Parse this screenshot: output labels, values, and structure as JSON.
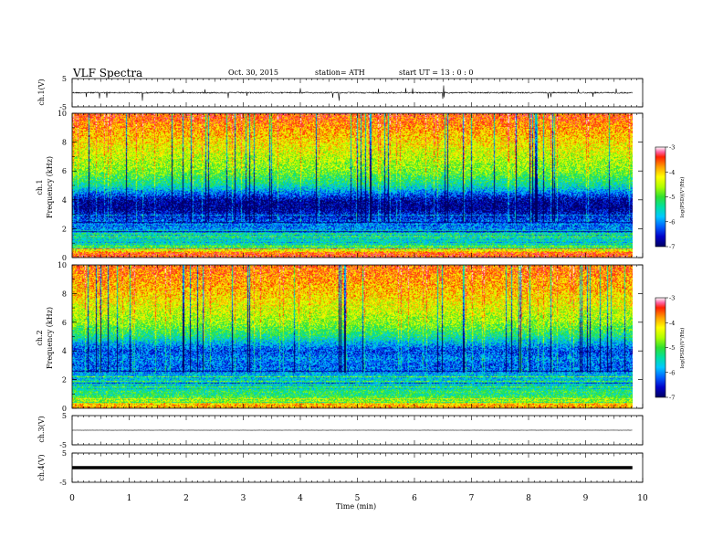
{
  "header": {
    "title": "VLF  Spectra",
    "date": "Oct. 30, 2015",
    "station": "station= ATH",
    "start": "start  UT  =   13 : 0  : 0"
  },
  "chart_data": [
    {
      "type": "line",
      "panel": "ch1-waveform",
      "ylabel": "ch.1(V)",
      "ylim": [
        -5,
        5
      ],
      "yticks": [
        "5",
        "-5"
      ],
      "xlim": [
        0,
        10
      ],
      "x_end": 9.82,
      "baseline": 0.0,
      "color": "#000000"
    },
    {
      "type": "heatmap",
      "panel": "ch1-spectrogram",
      "ylabel": "Frequency (kHz)",
      "channel_label": "ch.1",
      "ylim": [
        0,
        10
      ],
      "yticks": [
        "0",
        "2",
        "4",
        "6",
        "8",
        "10"
      ],
      "xlim": [
        0,
        10
      ],
      "x_end": 9.82,
      "profile": [
        {
          "f": 0.3,
          "v": -3.8
        },
        {
          "f": 0.6,
          "v": -4.8
        },
        {
          "f": 1.0,
          "v": -5.5
        },
        {
          "f": 1.5,
          "v": -5.9
        },
        {
          "f": 2.0,
          "v": -6.1
        },
        {
          "f": 2.5,
          "v": -6.3
        },
        {
          "f": 3.0,
          "v": -6.6
        },
        {
          "f": 3.5,
          "v": -6.9
        },
        {
          "f": 4.0,
          "v": -6.8
        },
        {
          "f": 4.5,
          "v": -6.2
        },
        {
          "f": 5.0,
          "v": -5.6
        },
        {
          "f": 5.5,
          "v": -5.3
        },
        {
          "f": 6.0,
          "v": -5.0
        },
        {
          "f": 7.0,
          "v": -4.7
        },
        {
          "f": 8.0,
          "v": -4.4
        },
        {
          "f": 9.0,
          "v": -4.1
        },
        {
          "f": 10.0,
          "v": -3.8
        }
      ]
    },
    {
      "type": "heatmap",
      "panel": "ch2-spectrogram",
      "ylabel": "Frequency (kHz)",
      "channel_label": "ch.2",
      "ylim": [
        0,
        10
      ],
      "yticks": [
        "0",
        "2",
        "4",
        "6",
        "8",
        "10"
      ],
      "xlim": [
        0,
        10
      ],
      "x_end": 9.82,
      "profile": [
        {
          "f": 0.3,
          "v": -4.2
        },
        {
          "f": 0.6,
          "v": -5.0
        },
        {
          "f": 1.0,
          "v": -5.4
        },
        {
          "f": 1.5,
          "v": -5.5
        },
        {
          "f": 2.0,
          "v": -5.8
        },
        {
          "f": 2.5,
          "v": -6.0
        },
        {
          "f": 3.0,
          "v": -6.3
        },
        {
          "f": 3.5,
          "v": -6.1
        },
        {
          "f": 4.0,
          "v": -6.4
        },
        {
          "f": 4.5,
          "v": -6.0
        },
        {
          "f": 5.0,
          "v": -5.5
        },
        {
          "f": 5.5,
          "v": -5.2
        },
        {
          "f": 6.0,
          "v": -4.9
        },
        {
          "f": 7.0,
          "v": -4.6
        },
        {
          "f": 8.0,
          "v": -4.3
        },
        {
          "f": 9.0,
          "v": -4.1
        },
        {
          "f": 10.0,
          "v": -3.9
        }
      ]
    },
    {
      "type": "line",
      "panel": "ch3-waveform",
      "ylabel": "ch.3(V)",
      "ylim": [
        -5,
        5
      ],
      "yticks": [
        "5",
        "-5"
      ],
      "xlim": [
        0,
        10
      ],
      "x_end": 9.82,
      "baseline": 0.0,
      "color": "#000000"
    },
    {
      "type": "line",
      "panel": "ch4-waveform",
      "ylabel": "ch.4(V)",
      "ylim": [
        -5,
        5
      ],
      "yticks": [
        "5",
        "-5"
      ],
      "xlim": [
        0,
        10
      ],
      "x_end": 9.82,
      "baseline": 0.0,
      "color": "#000000"
    }
  ],
  "colorbar": {
    "label": "log(PSD)(V²/Hz)",
    "range": [
      -7,
      -3
    ],
    "ticks": [
      "-3",
      "-4",
      "-5",
      "-6",
      "-7"
    ],
    "colors": [
      "#000060",
      "#0000c8",
      "#0060ff",
      "#00c8ff",
      "#00e0a0",
      "#30e030",
      "#b0ff00",
      "#ffff00",
      "#ffa000",
      "#ff2000",
      "#ff60a0",
      "#ffffff"
    ]
  },
  "xaxis": {
    "label": "Time  (min)",
    "ticks": [
      "0",
      "1",
      "2",
      "3",
      "4",
      "5",
      "6",
      "7",
      "8",
      "9",
      "10"
    ]
  }
}
